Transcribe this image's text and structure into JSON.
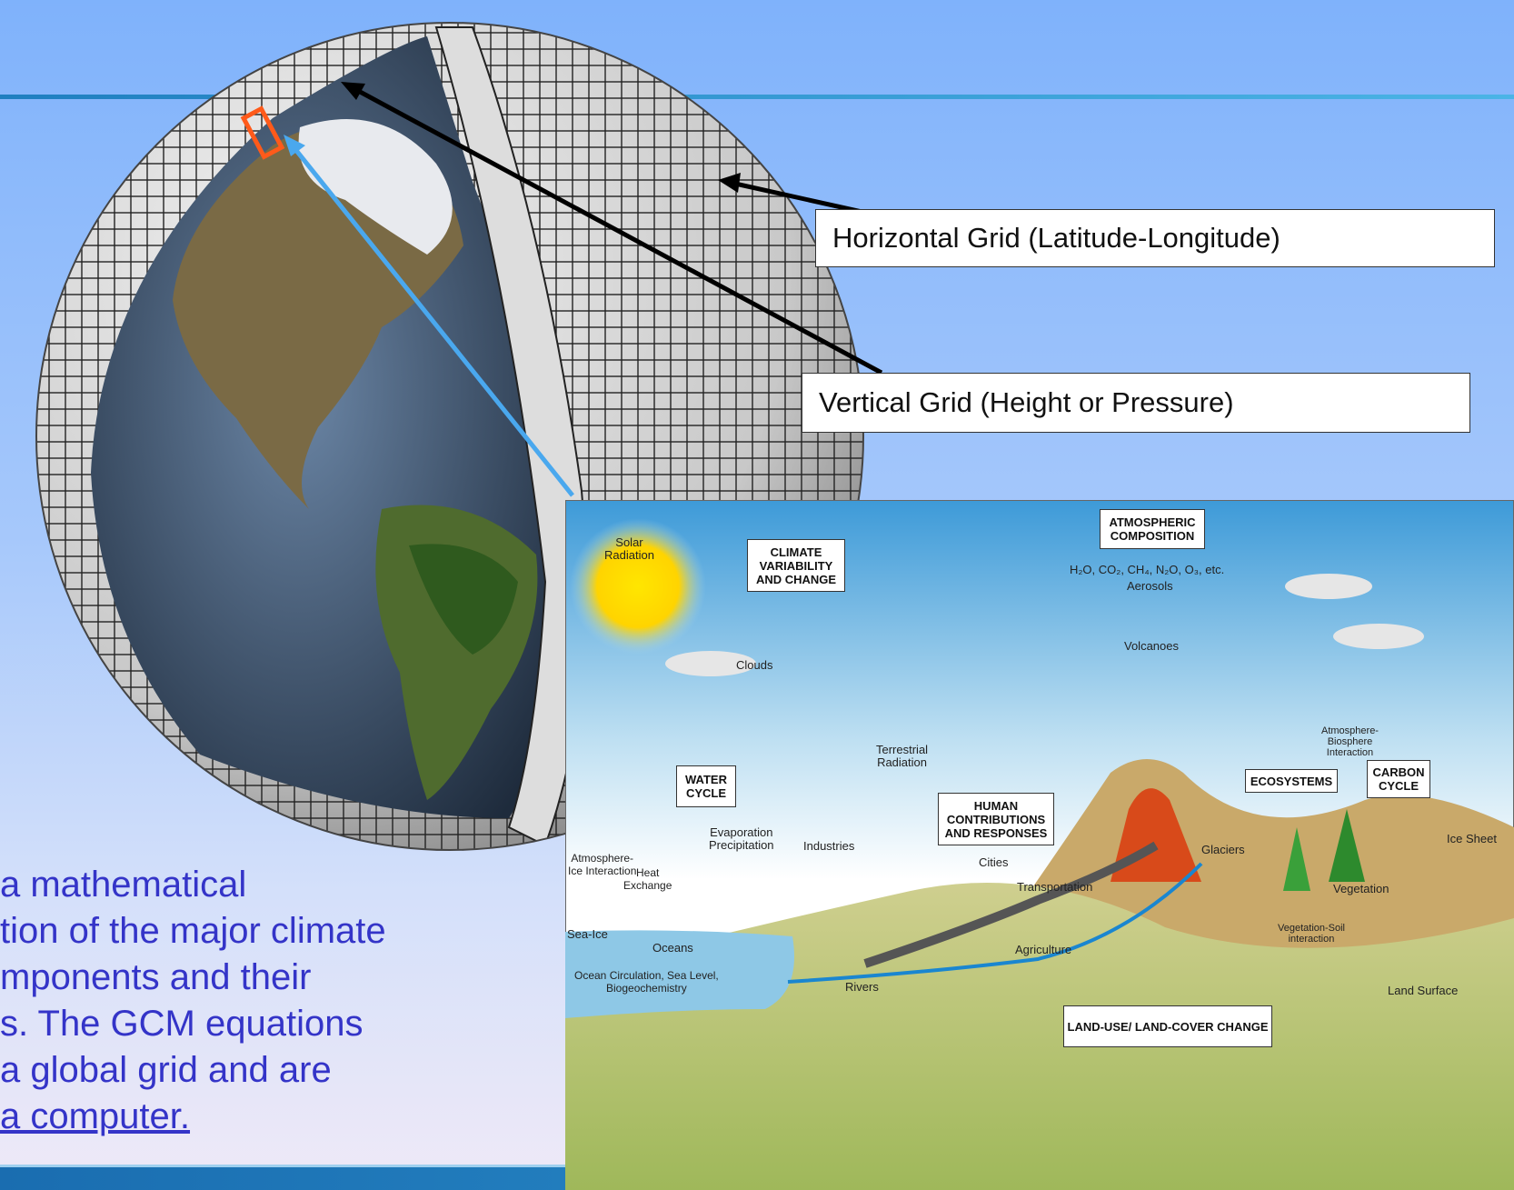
{
  "labels": {
    "horizontal_grid": "Horizontal Grid (Latitude-Longitude)",
    "vertical_grid": "Vertical Grid (Height or Pressure)"
  },
  "caption_lines": [
    "a mathematical",
    "tion of the major climate",
    "mponents and their",
    "s.  The GCM equations",
    " a global grid and are",
    "a computer."
  ],
  "diagram": {
    "solar": "Solar\nRadiation",
    "climate_var": "CLIMATE\nVARIABILITY\nAND CHANGE",
    "atmos_comp": "ATMOSPHERIC\nCOMPOSITION",
    "gases": "H₂O, CO₂, CH₄, N₂O, O₃, etc.",
    "aerosols": "Aerosols",
    "volcanoes": "Volcanoes",
    "clouds": "Clouds",
    "water_cycle": "WATER\nCYCLE",
    "terrestrial": "Terrestrial\nRadiation",
    "human": "HUMAN\nCONTRIBUTIONS\nAND RESPONSES",
    "ecosystems": "ECOSYSTEMS",
    "carbon": "CARBON\nCYCLE",
    "atmo_bio": "Atmosphere-\nBiosphere\nInteraction",
    "evap": "Evaporation\nPrecipitation",
    "industries": "Industries",
    "cities": "Cities",
    "glaciers": "Glaciers",
    "ice_sheet": "Ice Sheet",
    "atmo_ice": "Atmosphere-\nIce Interaction",
    "heat": "Heat\nExchange",
    "transport": "Transportation",
    "vegetation": "Vegetation",
    "sea_ice": "Sea-Ice",
    "oceans": "Oceans",
    "agriculture": "Agriculture",
    "veg_soil": "Vegetation-Soil\ninteraction",
    "ocean_circ": "Ocean Circulation, Sea Level,\nBiogeochemistry",
    "rivers": "Rivers",
    "land_surface": "Land Surface",
    "land_use": "LAND-USE/ LAND-COVER CHANGE"
  }
}
